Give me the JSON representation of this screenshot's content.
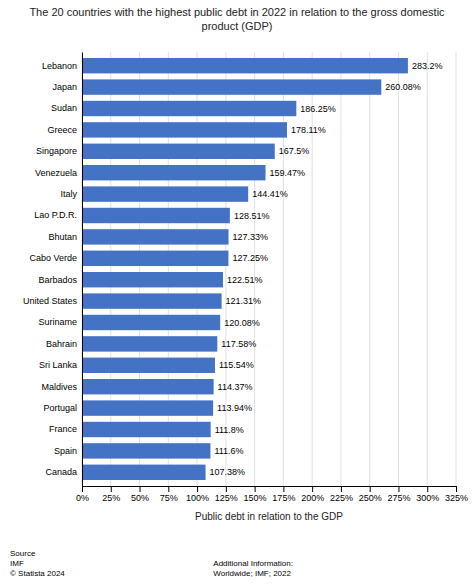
{
  "chart_data": {
    "type": "bar",
    "orientation": "horizontal",
    "title": "The 20 countries with the highest public debt in 2022 in relation to the gross domestic\nproduct (GDP)",
    "categories": [
      "Lebanon",
      "Japan",
      "Sudan",
      "Greece",
      "Singapore",
      "Venezuela",
      "Italy",
      "Lao P.D.R.",
      "Bhutan",
      "Cabo Verde",
      "Barbados",
      "United States",
      "Suriname",
      "Bahrain",
      "Sri Lanka",
      "Maldives",
      "Portugal",
      "France",
      "Spain",
      "Canada"
    ],
    "values": [
      283.2,
      260.08,
      186.25,
      178.11,
      167.5,
      159.47,
      144.41,
      128.51,
      127.33,
      127.25,
      122.51,
      121.31,
      120.08,
      117.58,
      115.54,
      114.37,
      113.94,
      111.8,
      111.6,
      107.38
    ],
    "value_labels": [
      "283.2%",
      "260.08%",
      "186.25%",
      "178.11%",
      "167.5%",
      "159.47%",
      "144.41%",
      "128.51%",
      "127.33%",
      "127.25%",
      "122.51%",
      "121.31%",
      "120.08%",
      "117.58%",
      "115.54%",
      "114.37%",
      "113.94%",
      "111.8%",
      "111.6%",
      "107.38%"
    ],
    "data_labels": true,
    "color": "#4472C4",
    "xlabel": "Public debt in relation to the GDP",
    "xlim": [
      0,
      325
    ],
    "xticks": [
      {
        "value": 0,
        "label": "0%"
      },
      {
        "value": 25,
        "label": "25%"
      },
      {
        "value": 50,
        "label": "50%"
      },
      {
        "value": 75,
        "label": "75%"
      },
      {
        "value": 100,
        "label": "100%"
      },
      {
        "value": 125,
        "label": "125%"
      },
      {
        "value": 150,
        "label": "150%"
      },
      {
        "value": 175,
        "label": "175%"
      },
      {
        "value": 200,
        "label": "200%"
      },
      {
        "value": 225,
        "label": "225%"
      },
      {
        "value": 250,
        "label": "250%"
      },
      {
        "value": 275,
        "label": "275%"
      },
      {
        "value": 300,
        "label": "300%"
      },
      {
        "value": 325,
        "label": "325%"
      }
    ],
    "grid": true,
    "annotations": [
      "Source\nIMF\n© Statista 2024",
      "Additional Information:\nWorldwide; IMF; 2022"
    ]
  }
}
